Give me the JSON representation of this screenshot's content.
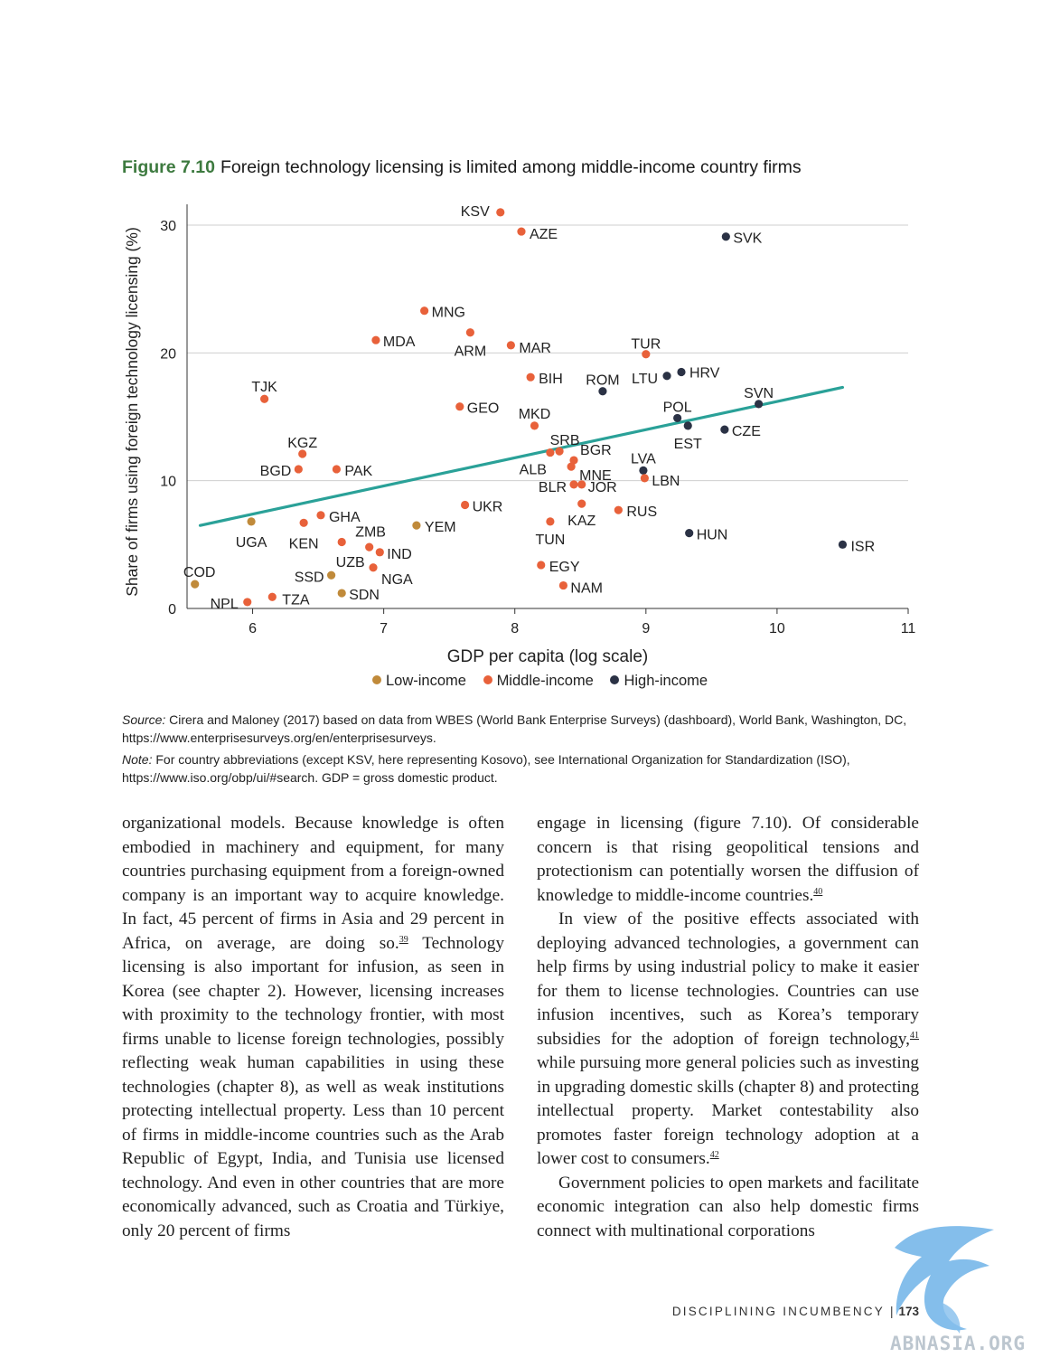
{
  "figure": {
    "number": "Figure 7.10",
    "title": "Foreign technology licensing is limited among middle-income country firms"
  },
  "chart_data": {
    "type": "scatter",
    "xlabel": "GDP per capita (log scale)",
    "ylabel": "Share of firms using foreign technology licensing (%)",
    "xlim": [
      5.5,
      11
    ],
    "ylim": [
      0,
      30
    ],
    "xticks": [
      6,
      7,
      8,
      9,
      10,
      11
    ],
    "yticks": [
      0,
      10,
      20,
      30
    ],
    "grid": "horizontal",
    "legend_position": "bottom",
    "colors": {
      "Low-income": "#c08a3a",
      "Middle-income": "#e8613a",
      "High-income": "#2b3245",
      "trend": "#2aa198"
    },
    "legend": [
      "Low-income",
      "Middle-income",
      "High-income"
    ],
    "trendline": {
      "x": [
        5.6,
        10.5
      ],
      "y": [
        6.5,
        17.3
      ]
    },
    "points": [
      {
        "label": "KSV",
        "x": 7.89,
        "y": 31.0,
        "group": "Middle-income"
      },
      {
        "label": "AZE",
        "x": 8.05,
        "y": 29.5,
        "group": "Middle-income"
      },
      {
        "label": "SVK",
        "x": 9.61,
        "y": 29.1,
        "group": "High-income"
      },
      {
        "label": "MNG",
        "x": 7.31,
        "y": 23.3,
        "group": "Middle-income"
      },
      {
        "label": "ARM",
        "x": 7.66,
        "y": 21.6,
        "group": "Middle-income"
      },
      {
        "label": "MDA",
        "x": 6.94,
        "y": 21.0,
        "group": "Middle-income"
      },
      {
        "label": "MAR",
        "x": 7.97,
        "y": 20.6,
        "group": "Middle-income"
      },
      {
        "label": "TUR",
        "x": 9.0,
        "y": 19.9,
        "group": "Middle-income"
      },
      {
        "label": "BIH",
        "x": 8.12,
        "y": 18.1,
        "group": "Middle-income"
      },
      {
        "label": "LTU",
        "x": 9.16,
        "y": 18.2,
        "group": "High-income"
      },
      {
        "label": "HRV",
        "x": 9.27,
        "y": 18.5,
        "group": "High-income"
      },
      {
        "label": "ROM",
        "x": 8.67,
        "y": 17.0,
        "group": "High-income"
      },
      {
        "label": "TJK",
        "x": 6.09,
        "y": 16.4,
        "group": "Middle-income"
      },
      {
        "label": "SVN",
        "x": 9.86,
        "y": 16.0,
        "group": "High-income"
      },
      {
        "label": "GEO",
        "x": 7.58,
        "y": 15.8,
        "group": "Middle-income"
      },
      {
        "label": "POL",
        "x": 9.24,
        "y": 14.9,
        "group": "High-income"
      },
      {
        "label": "MKD",
        "x": 8.15,
        "y": 14.3,
        "group": "Middle-income"
      },
      {
        "label": "EST",
        "x": 9.32,
        "y": 14.3,
        "group": "High-income"
      },
      {
        "label": "CZE",
        "x": 9.6,
        "y": 14.0,
        "group": "High-income"
      },
      {
        "label": "SRB",
        "x": 8.34,
        "y": 12.3,
        "group": "Middle-income"
      },
      {
        "label": "KGZ",
        "x": 6.38,
        "y": 12.1,
        "group": "Middle-income"
      },
      {
        "label": "ALB",
        "x": 8.27,
        "y": 12.2,
        "group": "Middle-income"
      },
      {
        "label": "BGR",
        "x": 8.45,
        "y": 11.6,
        "group": "Middle-income"
      },
      {
        "label": "MNE",
        "x": 8.43,
        "y": 11.1,
        "group": "Middle-income"
      },
      {
        "label": "BGD",
        "x": 6.35,
        "y": 10.9,
        "group": "Middle-income"
      },
      {
        "label": "PAK",
        "x": 6.64,
        "y": 10.9,
        "group": "Middle-income"
      },
      {
        "label": "LVA",
        "x": 8.98,
        "y": 10.8,
        "group": "High-income"
      },
      {
        "label": "LBN",
        "x": 8.99,
        "y": 10.2,
        "group": "Middle-income"
      },
      {
        "label": "BLR",
        "x": 8.45,
        "y": 9.7,
        "group": "Middle-income"
      },
      {
        "label": "JOR",
        "x": 8.51,
        "y": 9.7,
        "group": "Middle-income"
      },
      {
        "label": "KAZ",
        "x": 8.51,
        "y": 8.2,
        "group": "Middle-income"
      },
      {
        "label": "UKR",
        "x": 7.62,
        "y": 8.1,
        "group": "Middle-income"
      },
      {
        "label": "RUS",
        "x": 8.79,
        "y": 7.7,
        "group": "Middle-income"
      },
      {
        "label": "GHA",
        "x": 6.52,
        "y": 7.3,
        "group": "Middle-income"
      },
      {
        "label": "UGA",
        "x": 5.99,
        "y": 6.8,
        "group": "Low-income"
      },
      {
        "label": "TUN",
        "x": 8.27,
        "y": 6.8,
        "group": "Middle-income"
      },
      {
        "label": "KEN",
        "x": 6.39,
        "y": 6.7,
        "group": "Middle-income"
      },
      {
        "label": "YEM",
        "x": 7.25,
        "y": 6.5,
        "group": "Low-income"
      },
      {
        "label": "HUN",
        "x": 9.33,
        "y": 5.9,
        "group": "High-income"
      },
      {
        "label": "ZMB",
        "x": 6.68,
        "y": 5.2,
        "group": "Middle-income"
      },
      {
        "label": "ISR",
        "x": 10.5,
        "y": 5.0,
        "group": "High-income"
      },
      {
        "label": "UZB",
        "x": 6.89,
        "y": 4.8,
        "group": "Middle-income"
      },
      {
        "label": "IND",
        "x": 6.97,
        "y": 4.4,
        "group": "Middle-income"
      },
      {
        "label": "EGY",
        "x": 8.2,
        "y": 3.4,
        "group": "Middle-income"
      },
      {
        "label": "NGA",
        "x": 6.92,
        "y": 3.2,
        "group": "Middle-income"
      },
      {
        "label": "SSD",
        "x": 6.6,
        "y": 2.6,
        "group": "Low-income"
      },
      {
        "label": "COD",
        "x": 5.56,
        "y": 1.9,
        "group": "Low-income"
      },
      {
        "label": "NAM",
        "x": 8.37,
        "y": 1.8,
        "group": "Middle-income"
      },
      {
        "label": "SDN",
        "x": 6.68,
        "y": 1.2,
        "group": "Low-income"
      },
      {
        "label": "TZA",
        "x": 6.15,
        "y": 0.9,
        "group": "Middle-income"
      },
      {
        "label": "NPL",
        "x": 5.96,
        "y": 0.5,
        "group": "Middle-income"
      }
    ]
  },
  "source": {
    "label": "Source:",
    "text": " Cirera and Maloney (2017) based on data from WBES (World Bank Enterprise Surveys) (dashboard), World Bank, Washington, DC, https://www.enterprisesurveys.org/en/enterprisesurveys."
  },
  "note": {
    "label": "Note:",
    "text": " For country abbreviations (except KSV, here representing Kosovo), see International Organization for Standardization (ISO), https://www.iso.org/obp/ui/#search. GDP = gross domestic product."
  },
  "body": {
    "left": {
      "p1a": "organizational models. Because knowledge is often embodied in machinery and equipment, for many countries purchasing equipment from a foreign-owned company is an important way to acquire knowledge. In fact, 45 percent of firms in Asia and 29 percent in Africa, on average, are doing so.",
      "fn39": "39",
      "p1b": " Technology licensing is also important for infusion, as seen in Korea (see chapter 2). However, licensing increases with proximity to the technology frontier, with most firms unable to license foreign technologies, possibly reflecting weak human capabilities in using these technologies (chapter 8), as well as weak institutions protecting intellectual property. Less than 10 percent of firms in middle-income countries such as the Arab Republic of Egypt, India, and Tunisia use licensed technology. And even in other countries that are more economically advanced, such as Croatia and Türkiye, only 20 percent of firms"
    },
    "right": {
      "p1": "engage in licensing (figure 7.10). Of considerable concern is that rising geopolitical tensions and protectionism can potentially worsen the diffusion of knowledge to middle-income countries.",
      "fn40": "40",
      "p2a": "In view of the positive effects associated with deploying advanced technologies, a government can help firms by using industrial policy to make it easier for them to license technologies. Countries can use infusion incentives, such as Korea’s temporary subsidies for the adoption of foreign technology,",
      "fn41": "41",
      "p2b": " while pursuing more general policies such as investing in upgrading domestic skills (chapter 8) and protecting intellectual property. Market contestability also promotes faster foreign technology adoption at a lower cost to consumers.",
      "fn42": "42",
      "p3": "Government policies to open markets and facilitate economic integration can also help domestic firms connect with multinational corporations"
    }
  },
  "footer": {
    "section": "DISCIPLINING INCUMBENCY",
    "sep": "|",
    "page": "173"
  },
  "watermark": {
    "text": "ABNASIA.ORG",
    "icon": "eagle-logo-icon"
  }
}
